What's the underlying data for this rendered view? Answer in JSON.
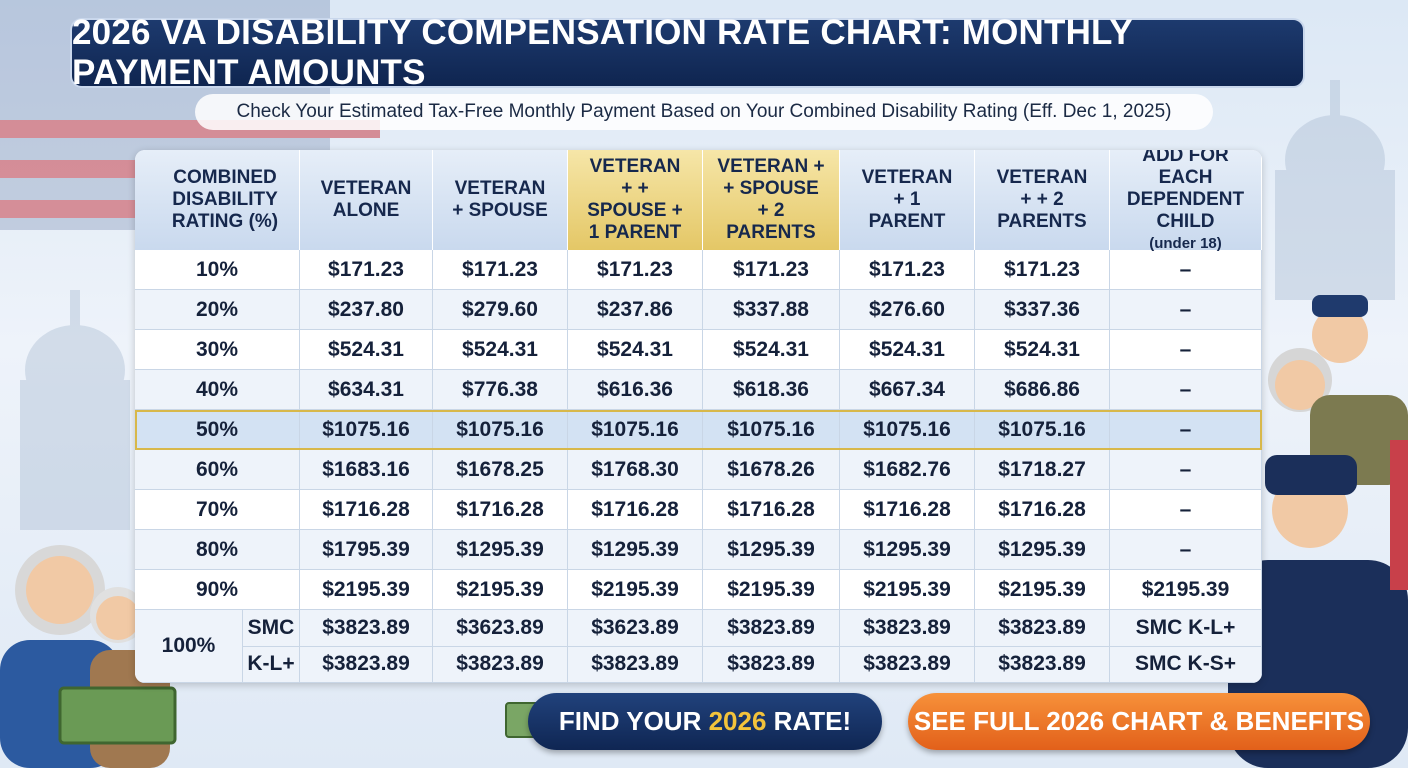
{
  "header": {
    "title": "2026 VA DISABILITY COMPENSATION RATE CHART: MONTHLY PAYMENT AMOUNTS",
    "subtitle": "Check Your Estimated Tax-Free Monthly Payment Based on Your Combined Disability Rating (Eff. Dec 1, 2025)"
  },
  "table": {
    "headers": [
      {
        "label": "COMBINED DISABILITY RATING (%)"
      },
      {
        "label": "VETERAN ALONE"
      },
      {
        "label": "VETERAN + SPOUSE"
      },
      {
        "label": "VETERAN + + SPOUSE + 1 PARENT"
      },
      {
        "label": "VETERAN + + SPOUSE + 2 PARENTS"
      },
      {
        "label": "VETERAN + 1 PARENT"
      },
      {
        "label": "VETERAN + + 2 PARENTS"
      },
      {
        "label": "ADD FOR EACH DEPENDENT CHILD",
        "note": "(under 18)"
      }
    ],
    "rows": [
      {
        "rating": "10%",
        "values": [
          "$171.23",
          "$171.23",
          "$171.23",
          "$171.23",
          "$171.23",
          "$171.23",
          "–"
        ]
      },
      {
        "rating": "20%",
        "values": [
          "$237.80",
          "$279.60",
          "$237.86",
          "$337.88",
          "$276.60",
          "$337.36",
          "–"
        ]
      },
      {
        "rating": "30%",
        "values": [
          "$524.31",
          "$524.31",
          "$524.31",
          "$524.31",
          "$524.31",
          "$524.31",
          "–"
        ]
      },
      {
        "rating": "40%",
        "values": [
          "$634.31",
          "$776.38",
          "$616.36",
          "$618.36",
          "$667.34",
          "$686.86",
          "–"
        ]
      },
      {
        "rating": "50%",
        "values": [
          "$1075.16",
          "$1075.16",
          "$1075.16",
          "$1075.16",
          "$1075.16",
          "$1075.16",
          "–"
        ]
      },
      {
        "rating": "60%",
        "values": [
          "$1683.16",
          "$1678.25",
          "$1768.30",
          "$1678.26",
          "$1682.76",
          "$1718.27",
          "–"
        ]
      },
      {
        "rating": "70%",
        "values": [
          "$1716.28",
          "$1716.28",
          "$1716.28",
          "$1716.28",
          "$1716.28",
          "$1716.28",
          "–"
        ]
      },
      {
        "rating": "80%",
        "values": [
          "$1795.39",
          "$1295.39",
          "$1295.39",
          "$1295.39",
          "$1295.39",
          "$1295.39",
          "–"
        ]
      },
      {
        "rating": "90%",
        "values": [
          "$2195.39",
          "$2195.39",
          "$2195.39",
          "$2195.39",
          "$2195.39",
          "$2195.39",
          "$2195.39"
        ]
      },
      {
        "rating": "100%",
        "sub": [
          "SMC",
          "K-L+"
        ],
        "lines": [
          [
            "$3823.89",
            "$3623.89",
            "$3623.89",
            "$3823.89",
            "$3823.89",
            "$3823.89",
            "SMC K-L+"
          ],
          [
            "$3823.89",
            "$3823.89",
            "$3823.89",
            "$3823.89",
            "$3823.89",
            "$3823.89",
            "SMC K-S+"
          ]
        ]
      }
    ]
  },
  "buttons": {
    "find": [
      "FIND YOUR ",
      "2026",
      " RATE!"
    ],
    "full": "SEE FULL 2026 CHART & BENEFITS"
  }
}
